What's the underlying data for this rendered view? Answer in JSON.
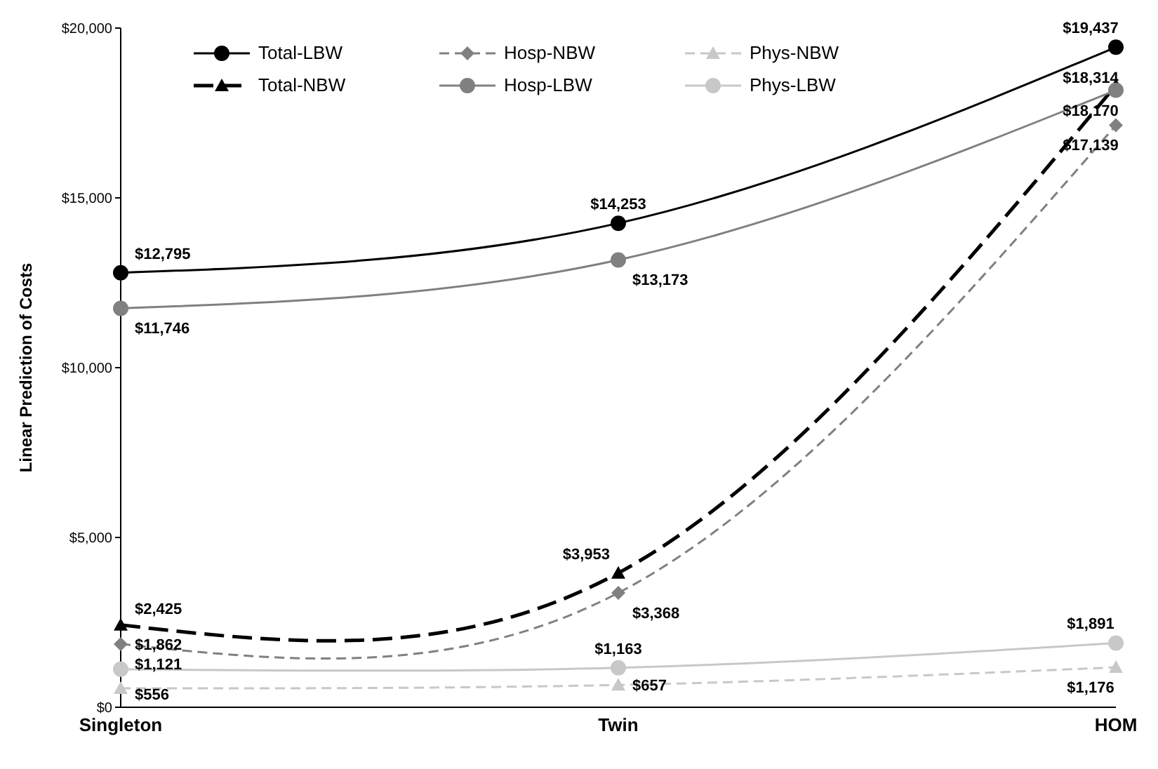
{
  "chart_data": {
    "type": "line",
    "ylabel": "Linear Prediction of Costs",
    "categories": [
      "Singleton",
      "Twin",
      "HOM"
    ],
    "ylim": [
      0,
      20000
    ],
    "yticks": [
      {
        "value": 0,
        "label": "$0"
      },
      {
        "value": 5000,
        "label": "$5,000"
      },
      {
        "value": 10000,
        "label": "$10,000"
      },
      {
        "value": 15000,
        "label": "$15,000"
      },
      {
        "value": 20000,
        "label": "$20,000"
      }
    ],
    "grid": false,
    "legend": "top left",
    "series": [
      {
        "name": "Total-LBW",
        "color": "#000000",
        "marker": "circle",
        "line_style": "solid",
        "values": [
          12795,
          14253,
          19437
        ],
        "value_labels": [
          "$12,795",
          "$14,253",
          "$19,437"
        ]
      },
      {
        "name": "Hosp-NBW",
        "color": "#808080",
        "marker": "diamond",
        "line_style": "dashed",
        "values": [
          1862,
          3368,
          17139
        ],
        "value_labels": [
          "$1,862",
          "$3,368",
          "$17,139"
        ]
      },
      {
        "name": "Phys-NBW",
        "color": "#c8c8c8",
        "marker": "triangle",
        "line_style": "dashed",
        "values": [
          556,
          657,
          1176
        ],
        "value_labels": [
          "$556",
          "$657",
          "$1,176"
        ]
      },
      {
        "name": "Total-NBW",
        "color": "#000000",
        "marker": "triangle",
        "line_style": "dashed",
        "values": [
          2425,
          3953,
          18314
        ],
        "value_labels": [
          "$2,425",
          "$3,953",
          "$18,314"
        ]
      },
      {
        "name": "Hosp-LBW",
        "color": "#808080",
        "marker": "circle",
        "line_style": "solid",
        "values": [
          11746,
          13173,
          18170
        ],
        "value_labels": [
          "$11,746",
          "$13,173",
          "$18,170"
        ]
      },
      {
        "name": "Phys-LBW",
        "color": "#c8c8c8",
        "marker": "circle",
        "line_style": "solid",
        "values": [
          1121,
          1163,
          1891
        ],
        "value_labels": [
          "$1,121",
          "$1,163",
          "$1,891"
        ]
      }
    ]
  }
}
